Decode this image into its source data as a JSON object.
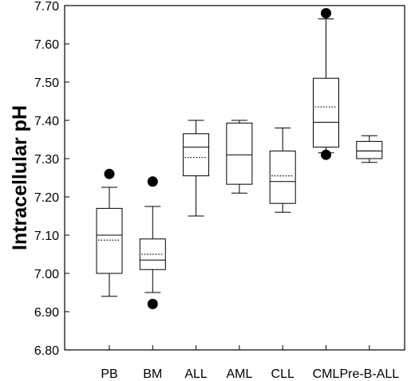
{
  "chart_data": {
    "type": "boxplot",
    "title": "",
    "xlabel": "",
    "ylabel": "Intracellular pH",
    "ylim": [
      6.8,
      7.7
    ],
    "yticks": [
      "6.80",
      "6.90",
      "7.00",
      "7.10",
      "7.20",
      "7.30",
      "7.40",
      "7.50",
      "7.60",
      "7.70"
    ],
    "grid": false,
    "categories": [
      "PB",
      "BM",
      "ALL",
      "AML",
      "CLL",
      "CML",
      "Pre-B-ALL"
    ],
    "boxes": [
      {
        "name": "PB",
        "whisker_low": 6.94,
        "q1": 7.0,
        "median": 7.1,
        "mean": 7.087,
        "q3": 7.17,
        "whisker_high": 7.225,
        "outliers": [
          7.26
        ]
      },
      {
        "name": "BM",
        "whisker_low": 6.95,
        "q1": 7.01,
        "median": 7.035,
        "mean": 7.05,
        "q3": 7.09,
        "whisker_high": 7.175,
        "outliers": [
          6.92,
          7.24
        ]
      },
      {
        "name": "ALL",
        "whisker_low": 7.15,
        "q1": 7.255,
        "median": 7.33,
        "mean": 7.303,
        "q3": 7.365,
        "whisker_high": 7.4,
        "outliers": []
      },
      {
        "name": "AML",
        "whisker_low": 7.21,
        "q1": 7.233,
        "median": 7.31,
        "mean": null,
        "q3": 7.393,
        "whisker_high": 7.4,
        "outliers": []
      },
      {
        "name": "CLL",
        "whisker_low": 7.16,
        "q1": 7.183,
        "median": 7.24,
        "mean": 7.255,
        "q3": 7.32,
        "whisker_high": 7.38,
        "outliers": []
      },
      {
        "name": "CML",
        "whisker_low": 7.315,
        "q1": 7.33,
        "median": 7.395,
        "mean": 7.435,
        "q3": 7.51,
        "whisker_high": 7.665,
        "outliers": [
          7.31,
          7.68
        ]
      },
      {
        "name": "Pre-B-ALL",
        "whisker_low": 7.29,
        "q1": 7.3,
        "median": 7.32,
        "mean": 7.32,
        "q3": 7.345,
        "whisker_high": 7.36,
        "outliers": []
      }
    ]
  }
}
